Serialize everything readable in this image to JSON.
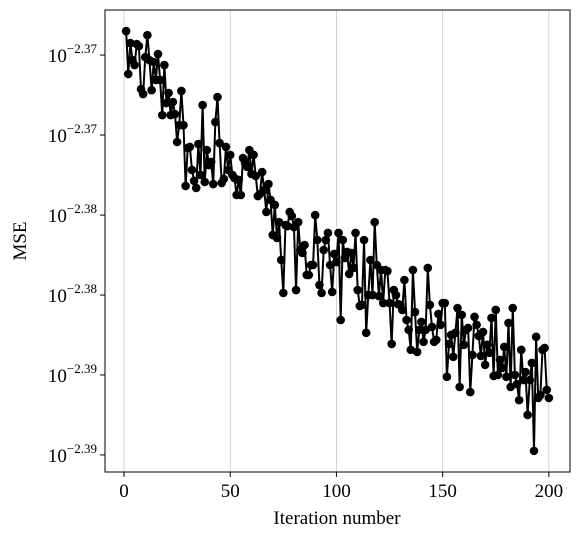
{
  "chart_data": {
    "type": "line",
    "color": "#000000",
    "grid": "x",
    "yscale": "log",
    "xlabel": "Iteration number",
    "ylabel": "MSE",
    "xlim": [
      -8.95,
      209.95
    ],
    "xticks": [
      0,
      50,
      100,
      150,
      200
    ],
    "ylim": [
      0.0040658,
      0.004288
    ],
    "yticks": [
      {
        "value": 0.0042658,
        "label": "10−2.37"
      },
      {
        "value": 0.0042267,
        "label": "10−2.37"
      },
      {
        "value": 0.0041879,
        "label": "10−2.38"
      },
      {
        "value": 0.0041495,
        "label": "10−2.38"
      },
      {
        "value": 0.0041115,
        "label": "10−2.39"
      },
      {
        "value": 0.0040738,
        "label": "10−2.39"
      }
    ],
    "x": [
      1,
      2,
      3,
      4,
      5,
      6,
      7,
      8,
      9,
      10,
      11,
      12,
      13,
      14,
      15,
      16,
      17,
      18,
      19,
      20,
      21,
      22,
      23,
      24,
      25,
      26,
      27,
      28,
      29,
      30,
      31,
      32,
      33,
      34,
      35,
      36,
      37,
      38,
      39,
      40,
      41,
      42,
      43,
      44,
      45,
      46,
      47,
      48,
      49,
      50,
      51,
      52,
      53,
      54,
      55,
      56,
      57,
      58,
      59,
      60,
      61,
      62,
      63,
      64,
      65,
      66,
      67,
      68,
      69,
      70,
      71,
      72,
      73,
      74,
      75,
      76,
      77,
      78,
      79,
      80,
      81,
      82,
      83,
      84,
      85,
      86,
      87,
      88,
      89,
      90,
      91,
      92,
      93,
      94,
      95,
      96,
      97,
      98,
      99,
      100,
      101,
      102,
      103,
      104,
      105,
      106,
      107,
      108,
      109,
      110,
      111,
      112,
      113,
      114,
      115,
      116,
      117,
      118,
      119,
      120,
      121,
      122,
      123,
      124,
      125,
      126,
      127,
      128,
      129,
      130,
      131,
      132,
      133,
      134,
      135,
      136,
      137,
      138,
      139,
      140,
      141,
      142,
      143,
      144,
      145,
      146,
      147,
      148,
      149,
      150,
      151,
      152,
      153,
      154,
      155,
      156,
      157,
      158,
      159,
      160,
      161,
      162,
      163,
      164,
      165,
      166,
      167,
      168,
      169,
      170,
      171,
      172,
      173,
      174,
      175,
      176,
      177,
      178,
      179,
      180,
      181,
      182,
      183,
      184,
      185,
      186,
      187,
      188,
      189,
      190,
      191,
      192,
      193,
      194,
      195,
      196,
      197,
      198,
      199,
      200
    ],
    "values": [
      0.0042776,
      0.0042565,
      0.0042717,
      0.0042633,
      0.0042609,
      0.0042712,
      0.0042702,
      0.0042491,
      0.0042467,
      0.0042648,
      0.0042756,
      0.0042633,
      0.0042486,
      0.0042624,
      0.0042536,
      0.0042663,
      0.0042536,
      0.0042364,
      0.0042609,
      0.0042423,
      0.0042472,
      0.0042364,
      0.0042428,
      0.0042369,
      0.0042233,
      0.0042315,
      0.0042482,
      0.0042315,
      0.004202,
      0.0042204,
      0.0042209,
      0.0042097,
      0.0042044,
      0.004201,
      0.0042223,
      0.0042073,
      0.0042413,
      0.0042039,
      0.0042194,
      0.0042121,
      0.0042136,
      0.0042029,
      0.004233,
      0.0042452,
      0.0042228,
      0.0042034,
      0.0042054,
      0.0042209,
      0.0042097,
      0.004217,
      0.0042073,
      0.0042058,
      0.0041976,
      0.0042049,
      0.0041976,
      0.0042155,
      0.0042131,
      0.0042112,
      0.0042194,
      0.0042078,
      0.004217,
      0.0042068,
      0.0041971,
      0.0041981,
      0.0042087,
      0.0042,
      0.0041894,
      0.0042029,
      0.0041952,
      0.0041783,
      0.0041928,
      0.0041769,
      0.0041845,
      0.0041663,
      0.0041505,
      0.0041831,
      0.0041826,
      0.0041894,
      0.0041874,
      0.0041821,
      0.0041519,
      0.0041845,
      0.0041711,
      0.0041697,
      0.0041735,
      0.0041591,
      0.0041591,
      0.0041639,
      0.0041639,
      0.0041879,
      0.0041759,
      0.0041543,
      0.0041505,
      0.0041711,
      0.0041759,
      0.0041793,
      0.0041639,
      0.004151,
      0.0041692,
      0.0041653,
      0.0041793,
      0.0041376,
      0.0041759,
      0.0041673,
      0.0041702,
      0.0041596,
      0.0041697,
      0.0041625,
      0.0041793,
      0.0041519,
      0.0041443,
      0.0041448,
      0.0041759,
      0.0041315,
      0.0041495,
      0.0041663,
      0.0041495,
      0.0041845,
      0.0041639,
      0.004149,
      0.0041615,
      0.0041457,
      0.0041615,
      0.004161,
      0.0041457,
      0.0041262,
      0.0041519,
      0.0041495,
      0.0041452,
      0.0041448,
      0.0041424,
      0.0041567,
      0.0041376,
      0.0041329,
      0.0041234,
      0.0041615,
      0.0041414,
      0.0041224,
      0.0041329,
      0.0041367,
      0.0041272,
      0.0041329,
      0.0041625,
      0.0041448,
      0.0041343,
      0.0041272,
      0.0041281,
      0.0041405,
      0.0041353,
      0.0041457,
      0.0041457,
      0.0041106,
      0.0041262,
      0.0041305,
      0.0041201,
      0.0041315,
      0.0041433,
      0.0041058,
      0.00414,
      0.0041258,
      0.0041329,
      0.0041338,
      0.0041034,
      0.004121,
      0.0041391,
      0.0041353,
      0.00413,
      0.0041205,
      0.0041319,
      0.0041163,
      0.0041258,
      0.004122,
      0.0041386,
      0.004111,
      0.0041424,
      0.0041115,
      0.0041186,
      0.0041148,
      0.0041248,
      0.0041106,
      0.0041362,
      0.0041058,
      0.0041433,
      0.0041115,
      0.0041072,
      0.0040996,
      0.0041234,
      0.0041091,
      0.0041129,
      0.0040926,
      0.0041091,
      0.0041172,
      0.0040757,
      0.0041296,
      0.0041006,
      0.004102,
      0.0041234,
      0.0041243,
      0.0041044,
      0.0041006
    ]
  }
}
